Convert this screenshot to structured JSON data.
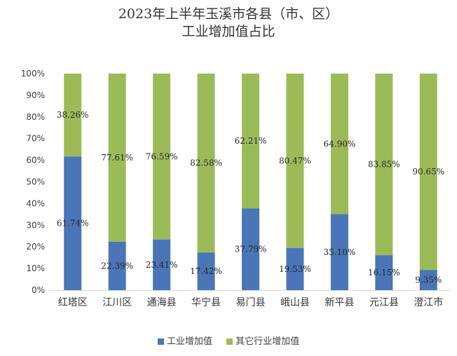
{
  "chart_data": {
    "type": "bar",
    "stacked": true,
    "normalized": true,
    "title": "2023年上半年玉溪市各县（市、区）",
    "subtitle": "工业增加值占比",
    "categories": [
      "红塔区",
      "江川区",
      "通海县",
      "华宁县",
      "易门县",
      "峨山县",
      "新平县",
      "元江县",
      "澄江市"
    ],
    "series": [
      {
        "name": "工业增加值",
        "color": "#4a76b7",
        "values": [
          61.74,
          22.39,
          23.41,
          17.42,
          37.79,
          19.53,
          35.1,
          16.15,
          9.35
        ],
        "labels": [
          "61.74%",
          "22.39%",
          "23.41%",
          "17.42%",
          "37.79%",
          "19.53%",
          "35.10%",
          "16.15%",
          "9.35%"
        ]
      },
      {
        "name": "其它行业增加值",
        "color": "#9bbb59",
        "values": [
          38.26,
          77.61,
          76.59,
          82.58,
          62.21,
          80.47,
          64.9,
          83.85,
          90.65
        ],
        "labels": [
          "38.26%",
          "77.61%",
          "76.59%",
          "82.58%",
          "62.21%",
          "80.47%",
          "64.90%",
          "83.85%",
          "90.65%"
        ]
      }
    ],
    "yticks": [
      "0%",
      "10%",
      "20%",
      "30%",
      "40%",
      "50%",
      "60%",
      "70%",
      "80%",
      "90%",
      "100%"
    ],
    "ylim": [
      0,
      100
    ],
    "xlabel": "",
    "ylabel": "",
    "grid": false,
    "legend": "bottom"
  }
}
